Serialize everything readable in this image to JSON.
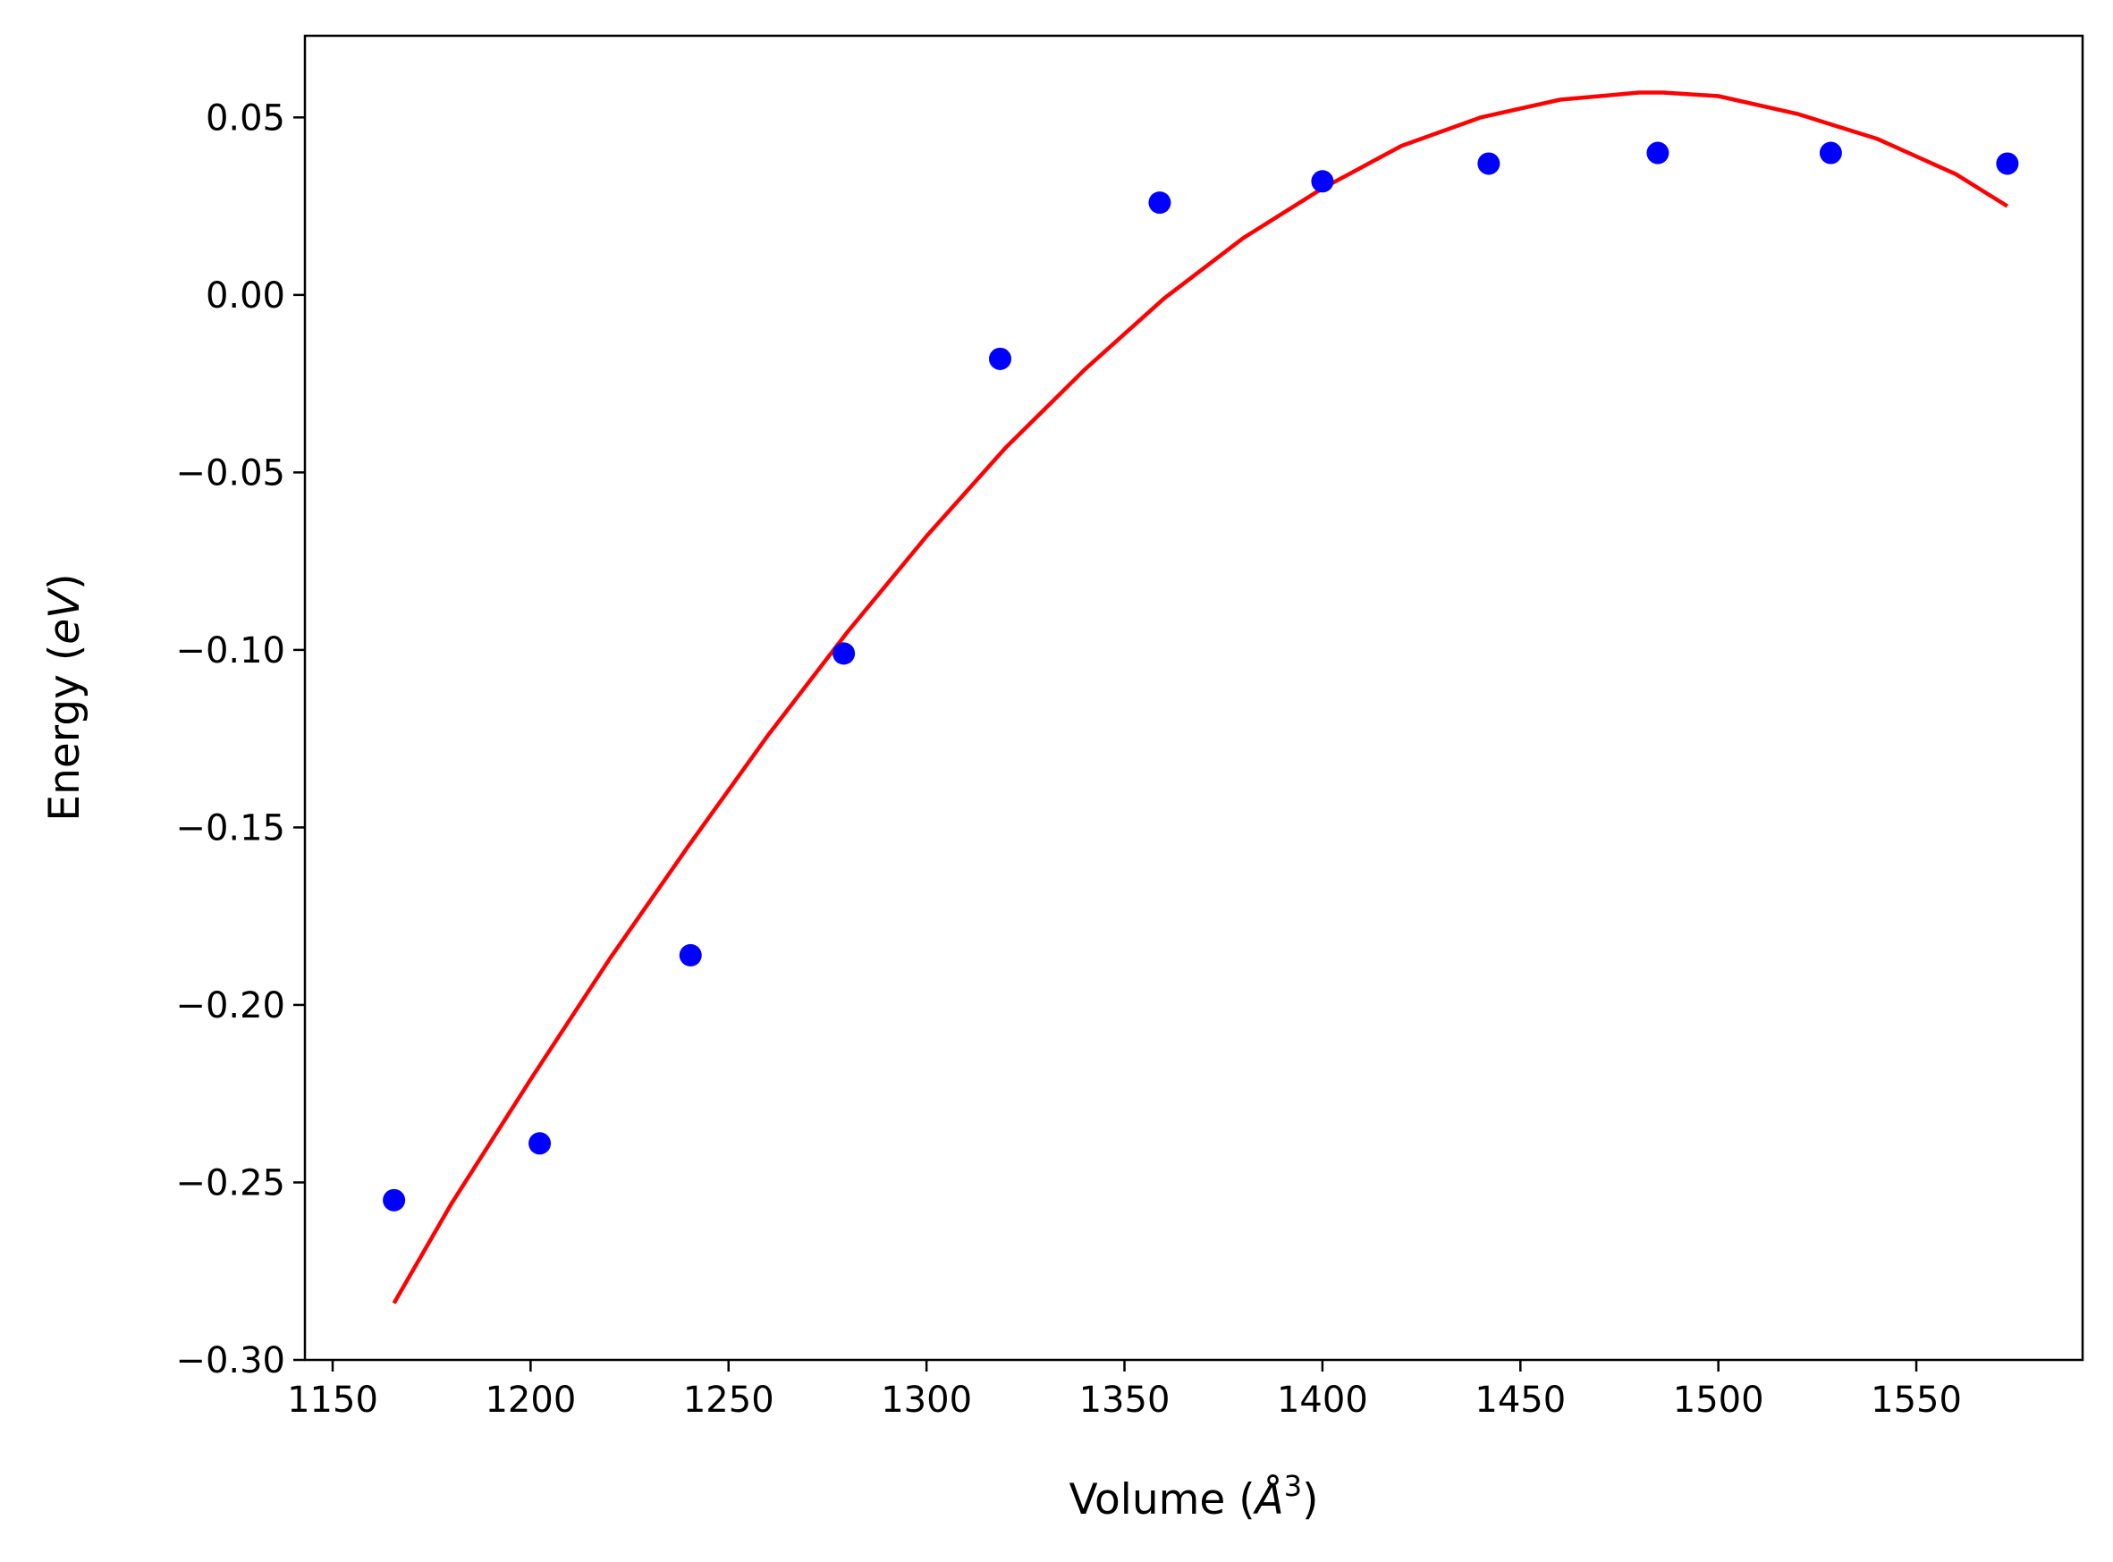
{
  "chart_data": {
    "type": "scatter",
    "title": "",
    "xlabel": {
      "prefix": "Volume (",
      "symbol": "Å",
      "superscript": "3",
      "suffix": ")"
    },
    "ylabel": {
      "prefix": "Energy (",
      "symbol": "eV",
      "suffix": ")"
    },
    "xlim": [
      1143,
      1592
    ],
    "ylim": [
      -0.3,
      0.073
    ],
    "xticks": [
      {
        "value": 1150,
        "label": "1150"
      },
      {
        "value": 1200,
        "label": "1200"
      },
      {
        "value": 1250,
        "label": "1250"
      },
      {
        "value": 1300,
        "label": "1300"
      },
      {
        "value": 1350,
        "label": "1350"
      },
      {
        "value": 1400,
        "label": "1400"
      },
      {
        "value": 1450,
        "label": "1450"
      },
      {
        "value": 1500,
        "label": "1500"
      },
      {
        "value": 1550,
        "label": "1550"
      }
    ],
    "yticks": [
      {
        "value": 0.05,
        "label": "0.05"
      },
      {
        "value": 0.0,
        "label": "0.00"
      },
      {
        "value": -0.05,
        "label": "−0.05"
      },
      {
        "value": -0.1,
        "label": "−0.10"
      },
      {
        "value": -0.15,
        "label": "−0.15"
      },
      {
        "value": -0.2,
        "label": "−0.20"
      },
      {
        "value": -0.25,
        "label": "−0.25"
      },
      {
        "value": -0.3,
        "label": "−0.30"
      }
    ],
    "grid": false,
    "legend": null,
    "series": [
      {
        "type": "scatter",
        "color": "#0000ff",
        "x": [
          1165.5,
          1202.3,
          1240.4,
          1279.1,
          1318.6,
          1358.9,
          1400.0,
          1442.0,
          1484.7,
          1528.4,
          1573.0
        ],
        "y": [
          -0.255,
          -0.239,
          -0.186,
          -0.101,
          -0.018,
          0.026,
          0.032,
          0.037,
          0.04,
          0.04,
          0.037
        ]
      },
      {
        "type": "line",
        "color": "#ff0000",
        "x": [
          1165.5,
          1180,
          1200,
          1220,
          1240,
          1260,
          1280,
          1300,
          1320,
          1340,
          1360,
          1380,
          1400,
          1420,
          1440,
          1460,
          1480,
          1486,
          1500,
          1520,
          1540,
          1560,
          1573.0
        ],
        "y": [
          -0.284,
          -0.256,
          -0.221,
          -0.187,
          -0.155,
          -0.124,
          -0.095,
          -0.068,
          -0.043,
          -0.021,
          -0.001,
          0.016,
          0.03,
          0.042,
          0.05,
          0.055,
          0.057,
          0.057,
          0.056,
          0.051,
          0.044,
          0.034,
          0.025
        ]
      }
    ]
  }
}
